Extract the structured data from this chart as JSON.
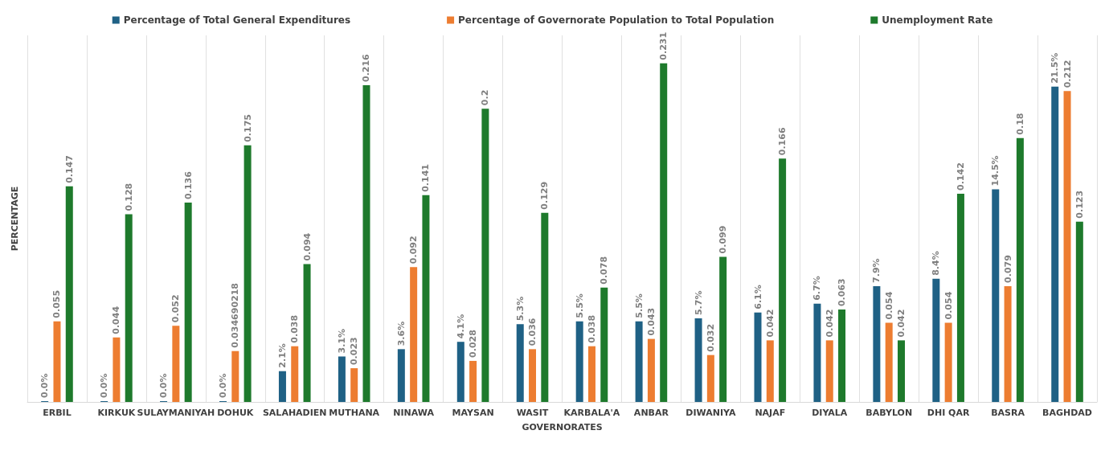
{
  "chart_data": {
    "type": "bar",
    "xlabel": "GOVERNORATES",
    "ylabel": "PERCENTAGE",
    "categories": [
      "ERBIL",
      "KIRKUK",
      "SULAYMANIYAH",
      "DOHUK",
      "SALAHADIEN",
      "MUTHANA",
      "NINAWA",
      "MAYSAN",
      "WASIT",
      "KARBALA'A",
      "ANBAR",
      "DIWANIYA",
      "NAJAF",
      "DIYALA",
      "BABYLON",
      "DHI QAR",
      "BASRA",
      "BAGHDAD"
    ],
    "series": [
      {
        "name": "Percentage of Total General Expenditures",
        "color": "#1f6185",
        "values": [
          0,
          0,
          0,
          0,
          0.021,
          0.031,
          0.036,
          0.041,
          0.053,
          0.055,
          0.055,
          0.057,
          0.061,
          0.067,
          0.079,
          0.084,
          0.145,
          0.215
        ],
        "value_labels": [
          "0.0%",
          "0.0%",
          "0.0%",
          "0.0%",
          "2.1%",
          "3.1%",
          "3.6%",
          "4.1%",
          "5.3%",
          "5.5%",
          "5.5%",
          "5.7%",
          "6.1%",
          "6.7%",
          "7.9%",
          "8.4%",
          "14.5%",
          "21.5%"
        ]
      },
      {
        "name": "Percentage of Governorate Population to Total Population",
        "color": "#ed7d31",
        "values": [
          0.055,
          0.044,
          0.052,
          0.034690218,
          0.038,
          0.023,
          0.092,
          0.028,
          0.036,
          0.038,
          0.043,
          0.032,
          0.042,
          0.042,
          0.054,
          0.054,
          0.079,
          0.212
        ]
      },
      {
        "name": "Unemployment Rate",
        "color": "#1e7a2c",
        "values": [
          0.147,
          0.128,
          0.136,
          0.175,
          0.094,
          0.216,
          0.141,
          0.2,
          0.129,
          0.078,
          0.231,
          0.099,
          0.166,
          0.063,
          0.042,
          0.142,
          0.18,
          0.123
        ]
      }
    ],
    "data_labels": true,
    "grid": "x",
    "legend": "top",
    "tick_labels": "x"
  }
}
